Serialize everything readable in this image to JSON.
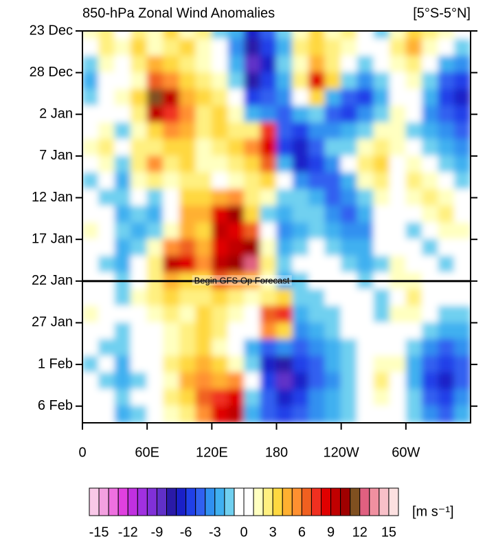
{
  "chart_data": {
    "type": "heatmap",
    "title": "850-hPa Zonal Wind Anomalies",
    "subtitle": "[5°S-5°N]",
    "xlim": [
      0,
      360
    ],
    "xticks": [
      0,
      {
        "value": 60,
        "label": "60E"
      },
      {
        "value": 120,
        "label": "120E"
      },
      {
        "value": 180,
        "label": "180"
      },
      {
        "value": 240,
        "label": "120W"
      },
      {
        "value": 300,
        "label": "60W"
      }
    ],
    "ylim": [
      0,
      47
    ],
    "yticks": [
      {
        "value": 0,
        "label": "23 Dec"
      },
      {
        "value": 5,
        "label": "28 Dec"
      },
      {
        "value": 10,
        "label": "2 Jan"
      },
      {
        "value": 15,
        "label": "7 Jan"
      },
      {
        "value": 20,
        "label": "12 Jan"
      },
      {
        "value": 25,
        "label": "17 Jan"
      },
      {
        "value": 30,
        "label": "22 Jan"
      },
      {
        "value": 35,
        "label": "27 Jan"
      },
      {
        "value": 40,
        "label": "1 Feb"
      },
      {
        "value": 45,
        "label": "6 Feb"
      }
    ],
    "annotation": {
      "text": "Begin GFS Op Forecast",
      "y": 30
    },
    "x": [
      7.5,
      22.5,
      37.5,
      52.5,
      67.5,
      82.5,
      97.5,
      112.5,
      127.5,
      142.5,
      157.5,
      172.5,
      187.5,
      202.5,
      217.5,
      232.5,
      247.5,
      262.5,
      277.5,
      292.5,
      307.5,
      322.5,
      337.5,
      352.5
    ],
    "y": [
      0,
      2,
      4,
      6,
      8,
      10,
      12,
      14,
      16,
      18,
      20,
      22,
      24,
      26,
      28,
      30,
      32,
      34,
      36,
      38,
      40,
      42,
      44,
      46
    ],
    "z": [
      [
        1,
        2,
        -1,
        2,
        1,
        3,
        1,
        2,
        -2,
        -3,
        -7,
        -5,
        -2,
        1,
        3,
        1,
        2,
        0,
        -2,
        1,
        3,
        2,
        1,
        0
      ],
      [
        -1,
        2,
        1,
        3,
        1,
        2,
        3,
        1,
        -1,
        -4,
        -8,
        -6,
        -3,
        2,
        3,
        2,
        1,
        -1,
        -1,
        2,
        4,
        1,
        0,
        -2
      ],
      [
        -2,
        1,
        -1,
        2,
        4,
        3,
        2,
        1,
        0,
        -3,
        -9,
        -7,
        -2,
        1,
        4,
        2,
        0,
        -2,
        -1,
        1,
        2,
        -1,
        -3,
        -4
      ],
      [
        -3,
        -1,
        0,
        1,
        6,
        5,
        3,
        2,
        1,
        -2,
        -8,
        -6,
        -3,
        2,
        8,
        3,
        -2,
        -4,
        -2,
        0,
        1,
        -2,
        -5,
        -6
      ],
      [
        -2,
        -1,
        1,
        3,
        11,
        9,
        4,
        3,
        2,
        0,
        -6,
        -5,
        -4,
        -1,
        3,
        -3,
        -5,
        -6,
        -3,
        0,
        -1,
        -3,
        -6,
        -7
      ],
      [
        -1,
        0,
        -1,
        2,
        9,
        7,
        5,
        2,
        3,
        1,
        -3,
        -4,
        -5,
        -3,
        -2,
        -5,
        -6,
        -4,
        -2,
        1,
        -1,
        -4,
        -5,
        -6
      ],
      [
        0,
        1,
        -2,
        1,
        3,
        5,
        4,
        2,
        3,
        2,
        2,
        7,
        -5,
        -6,
        -4,
        -4,
        -3,
        -2,
        1,
        1,
        -2,
        -3,
        -4,
        -5
      ],
      [
        1,
        2,
        -1,
        2,
        2,
        3,
        3,
        1,
        2,
        3,
        5,
        8,
        -6,
        -7,
        -5,
        -2,
        -2,
        1,
        2,
        1,
        -1,
        -2,
        -3,
        -4
      ],
      [
        -1,
        1,
        -2,
        2,
        5,
        2,
        3,
        1,
        1,
        2,
        3,
        6,
        -3,
        -7,
        -6,
        -4,
        -1,
        2,
        3,
        0,
        1,
        -1,
        -2,
        -3
      ],
      [
        -2,
        -1,
        -3,
        1,
        2,
        1,
        2,
        2,
        0,
        1,
        2,
        3,
        -1,
        -4,
        -5,
        -5,
        -3,
        1,
        2,
        0,
        2,
        1,
        -1,
        -2
      ],
      [
        -1,
        -2,
        -2,
        -1,
        -2,
        0,
        3,
        3,
        4,
        5,
        2,
        1,
        -2,
        -2,
        -3,
        -5,
        -4,
        -2,
        1,
        -1,
        1,
        2,
        1,
        -1
      ],
      [
        0,
        -1,
        -3,
        -2,
        -3,
        -1,
        4,
        4,
        8,
        10,
        3,
        -2,
        -3,
        -2,
        -2,
        -4,
        -5,
        -3,
        0,
        -1,
        -1,
        1,
        2,
        0
      ],
      [
        1,
        0,
        -2,
        -3,
        -2,
        1,
        4,
        3,
        9,
        8,
        6,
        0,
        -4,
        -3,
        -2,
        -3,
        -4,
        -4,
        -1,
        0,
        -2,
        0,
        1,
        1
      ],
      [
        0,
        -1,
        -3,
        -2,
        1,
        5,
        6,
        4,
        8,
        9,
        10,
        1,
        -3,
        -2,
        -1,
        -2,
        -3,
        -3,
        -1,
        0,
        -1,
        -2,
        -1,
        0
      ],
      [
        -1,
        -2,
        -3,
        -1,
        2,
        9,
        8,
        5,
        9,
        10,
        12,
        2,
        -2,
        -1,
        0,
        -1,
        -2,
        -3,
        -2,
        1,
        0,
        -1,
        -2,
        -1
      ],
      [
        -1,
        -1,
        -2,
        0,
        2,
        4,
        3,
        3,
        6,
        5,
        4,
        1,
        -3,
        -2,
        -1,
        0,
        -1,
        -2,
        -1,
        1,
        1,
        0,
        -1,
        -1
      ],
      [
        0,
        -1,
        -2,
        1,
        2,
        3,
        2,
        2,
        3,
        2,
        1,
        2,
        3,
        -2,
        -2,
        -1,
        0,
        -1,
        -2,
        0,
        2,
        0,
        -1,
        0
      ],
      [
        1,
        0,
        -1,
        0,
        1,
        2,
        1,
        3,
        2,
        1,
        0,
        6,
        7,
        -3,
        -2,
        -2,
        -1,
        0,
        -2,
        1,
        1,
        -1,
        -2,
        -2
      ],
      [
        0,
        -1,
        -2,
        -1,
        0,
        1,
        2,
        3,
        2,
        0,
        -1,
        5,
        3,
        -4,
        -3,
        -2,
        -1,
        0,
        -1,
        0,
        0,
        -2,
        -3,
        -3
      ],
      [
        -1,
        -2,
        -2,
        0,
        0,
        1,
        2,
        3,
        1,
        -1,
        -3,
        -5,
        -4,
        -5,
        -4,
        -3,
        -2,
        -1,
        0,
        0,
        -2,
        -4,
        -5,
        -4
      ],
      [
        -2,
        -1,
        -3,
        -1,
        0,
        2,
        3,
        4,
        3,
        1,
        -2,
        -7,
        -8,
        -6,
        -5,
        -3,
        -2,
        -1,
        1,
        1,
        -3,
        -5,
        -6,
        -5
      ],
      [
        -1,
        -2,
        -3,
        -2,
        -1,
        1,
        4,
        5,
        4,
        5,
        -1,
        -6,
        -9,
        -7,
        -5,
        -4,
        -2,
        0,
        2,
        0,
        -3,
        -6,
        -7,
        -5
      ],
      [
        0,
        -1,
        -2,
        -1,
        -1,
        2,
        3,
        6,
        7,
        8,
        -2,
        -5,
        -7,
        -6,
        -4,
        -3,
        -2,
        0,
        1,
        0,
        -2,
        -5,
        -6,
        -4
      ],
      [
        -1,
        -1,
        -3,
        -2,
        0,
        1,
        2,
        5,
        8,
        9,
        -3,
        -5,
        -6,
        -5,
        -4,
        -3,
        -2,
        -1,
        0,
        -1,
        -2,
        -4,
        -5,
        -3
      ]
    ],
    "colorbar": {
      "levels": [
        -15,
        -14,
        -13,
        -12,
        -11,
        -10,
        -9,
        -8,
        -7,
        -6,
        -5,
        -4,
        -3,
        -2,
        -1,
        0,
        1,
        2,
        3,
        4,
        5,
        6,
        7,
        8,
        9,
        10,
        11,
        12,
        13,
        14,
        15
      ],
      "colors": [
        "#f9c8e8",
        "#f3a0e0",
        "#ee70e0",
        "#e040e0",
        "#c030e0",
        "#a030e0",
        "#8030d8",
        "#6030c8",
        "#2a1aa8",
        "#1a20c8",
        "#2040e8",
        "#3060f0",
        "#3090f0",
        "#40b0f0",
        "#70d0f0",
        "#ffffff",
        "#ffffff",
        "#ffffc0",
        "#fff080",
        "#ffd840",
        "#ffb030",
        "#ff9030",
        "#f06020",
        "#f03020",
        "#e00000",
        "#c00000",
        "#a00000",
        "#805020",
        "#e06080",
        "#f090a0",
        "#f8c0c8",
        "#fce0e0"
      ],
      "ticks": [
        -15,
        -12,
        -9,
        -6,
        -3,
        0,
        3,
        6,
        9,
        12,
        15
      ],
      "units": "[m s⁻¹]"
    }
  }
}
